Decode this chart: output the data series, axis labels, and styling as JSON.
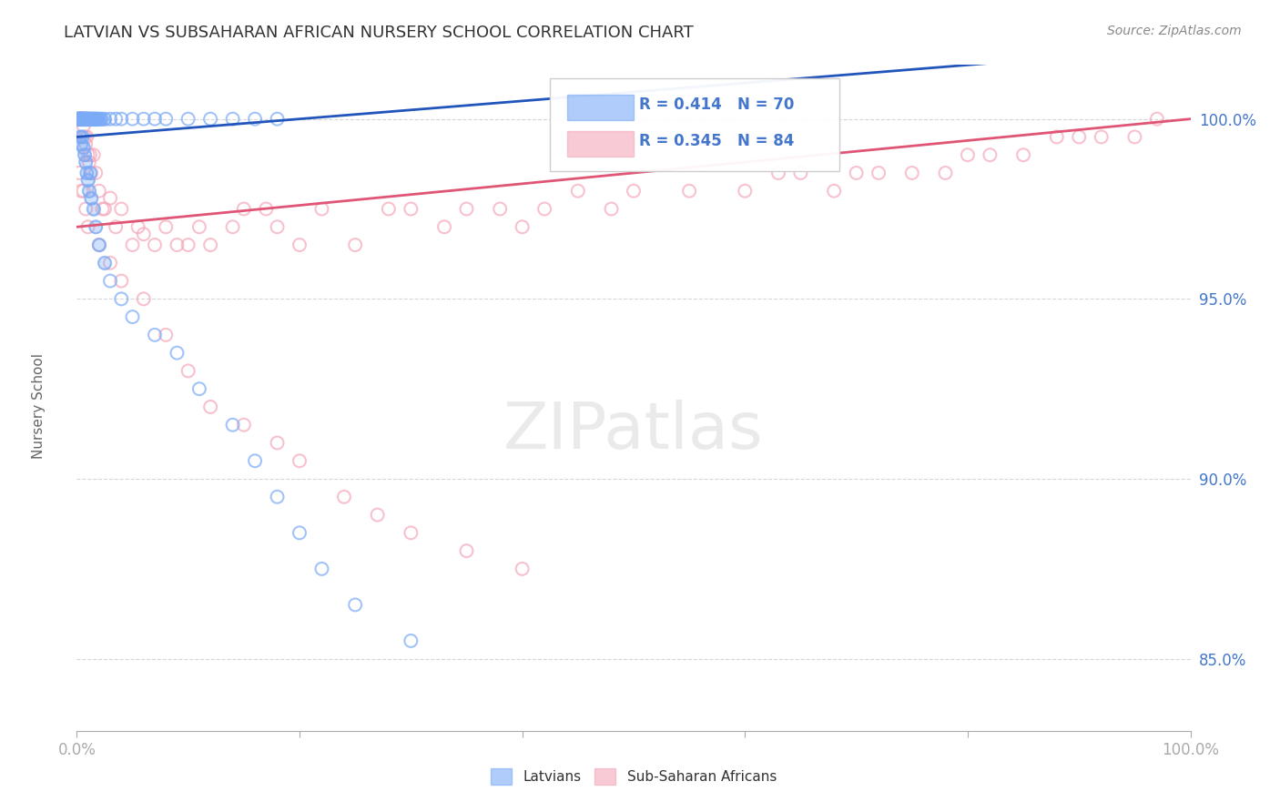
{
  "title": "LATVIAN VS SUBSAHARAN AFRICAN NURSERY SCHOOL CORRELATION CHART",
  "source": "Source: ZipAtlas.com",
  "ylabel": "Nursery School",
  "latvian_color": "#7baaf7",
  "latvian_edge_color": "#5588dd",
  "subsaharan_color": "#f4a7b9",
  "subsaharan_edge_color": "#e06080",
  "trendline_latvian_color": "#2255bb",
  "trendline_subsaharan_color": "#e05575",
  "background_color": "#ffffff",
  "title_color": "#333333",
  "axis_label_color": "#4477cc",
  "grid_color": "#cccccc",
  "latvians_label": "Latvians",
  "subsaharan_label": "Sub-Saharan Africans",
  "legend_latvian_R": "0.414",
  "legend_latvian_N": "70",
  "legend_subsaharan_R": "0.345",
  "legend_subsaharan_N": "84",
  "xlim": [
    0.0,
    100.0
  ],
  "ylim": [
    83.0,
    101.5
  ],
  "y_ticks": [
    85.0,
    90.0,
    95.0,
    100.0
  ],
  "x_ticks": [
    0.0,
    20.0,
    40.0,
    60.0,
    80.0,
    100.0
  ],
  "latvian_x": [
    0.1,
    0.2,
    0.2,
    0.3,
    0.3,
    0.4,
    0.4,
    0.5,
    0.5,
    0.6,
    0.6,
    0.7,
    0.7,
    0.8,
    0.8,
    0.9,
    0.9,
    1.0,
    1.0,
    1.1,
    1.2,
    1.3,
    1.4,
    1.5,
    1.6,
    1.7,
    1.8,
    2.0,
    2.2,
    2.5,
    3.0,
    3.5,
    4.0,
    5.0,
    6.0,
    7.0,
    8.0,
    10.0,
    12.0,
    14.0,
    16.0,
    18.0,
    0.3,
    0.4,
    0.5,
    0.6,
    0.7,
    0.8,
    0.9,
    1.0,
    1.1,
    1.2,
    1.3,
    1.5,
    1.7,
    2.0,
    2.5,
    3.0,
    4.0,
    5.0,
    7.0,
    9.0,
    11.0,
    14.0,
    16.0,
    18.0,
    20.0,
    22.0,
    25.0,
    30.0
  ],
  "latvian_y": [
    100.0,
    100.0,
    100.0,
    100.0,
    100.0,
    100.0,
    100.0,
    100.0,
    100.0,
    100.0,
    100.0,
    100.0,
    100.0,
    100.0,
    100.0,
    100.0,
    100.0,
    100.0,
    100.0,
    100.0,
    100.0,
    100.0,
    100.0,
    100.0,
    100.0,
    100.0,
    100.0,
    100.0,
    100.0,
    100.0,
    100.0,
    100.0,
    100.0,
    100.0,
    100.0,
    100.0,
    100.0,
    100.0,
    100.0,
    100.0,
    100.0,
    100.0,
    99.5,
    99.3,
    99.5,
    99.2,
    99.0,
    98.8,
    98.5,
    98.3,
    98.0,
    98.5,
    97.8,
    97.5,
    97.0,
    96.5,
    96.0,
    95.5,
    95.0,
    94.5,
    94.0,
    93.5,
    92.5,
    91.5,
    90.5,
    89.5,
    88.5,
    87.5,
    86.5,
    85.5
  ],
  "subsaharan_x": [
    0.1,
    0.2,
    0.3,
    0.4,
    0.5,
    0.6,
    0.7,
    0.8,
    0.9,
    1.0,
    1.1,
    1.2,
    1.3,
    1.5,
    1.7,
    2.0,
    2.3,
    2.5,
    3.0,
    3.5,
    4.0,
    5.0,
    5.5,
    6.0,
    7.0,
    8.0,
    9.0,
    10.0,
    11.0,
    12.0,
    14.0,
    15.0,
    17.0,
    18.0,
    20.0,
    22.0,
    25.0,
    28.0,
    30.0,
    33.0,
    35.0,
    38.0,
    40.0,
    42.0,
    45.0,
    48.0,
    50.0,
    55.0,
    60.0,
    63.0,
    65.0,
    68.0,
    70.0,
    72.0,
    75.0,
    78.0,
    80.0,
    82.0,
    85.0,
    88.0,
    90.0,
    92.0,
    95.0,
    97.0,
    0.2,
    0.4,
    0.6,
    0.8,
    1.0,
    2.0,
    3.0,
    4.0,
    6.0,
    8.0,
    10.0,
    12.0,
    15.0,
    18.0,
    20.0,
    24.0,
    27.0,
    30.0,
    35.0,
    40.0
  ],
  "subsaharan_y": [
    100.0,
    100.0,
    100.0,
    100.0,
    100.0,
    99.8,
    99.5,
    99.3,
    99.5,
    99.0,
    98.8,
    99.0,
    98.5,
    99.0,
    98.5,
    98.0,
    97.5,
    97.5,
    97.8,
    97.0,
    97.5,
    96.5,
    97.0,
    96.8,
    96.5,
    97.0,
    96.5,
    96.5,
    97.0,
    96.5,
    97.0,
    97.5,
    97.5,
    97.0,
    96.5,
    97.5,
    96.5,
    97.5,
    97.5,
    97.0,
    97.5,
    97.5,
    97.0,
    97.5,
    98.0,
    97.5,
    98.0,
    98.0,
    98.0,
    98.5,
    98.5,
    98.0,
    98.5,
    98.5,
    98.5,
    98.5,
    99.0,
    99.0,
    99.0,
    99.5,
    99.5,
    99.5,
    99.5,
    100.0,
    98.5,
    98.0,
    98.0,
    97.5,
    97.0,
    96.5,
    96.0,
    95.5,
    95.0,
    94.0,
    93.0,
    92.0,
    91.5,
    91.0,
    90.5,
    89.5,
    89.0,
    88.5,
    88.0,
    87.5
  ]
}
